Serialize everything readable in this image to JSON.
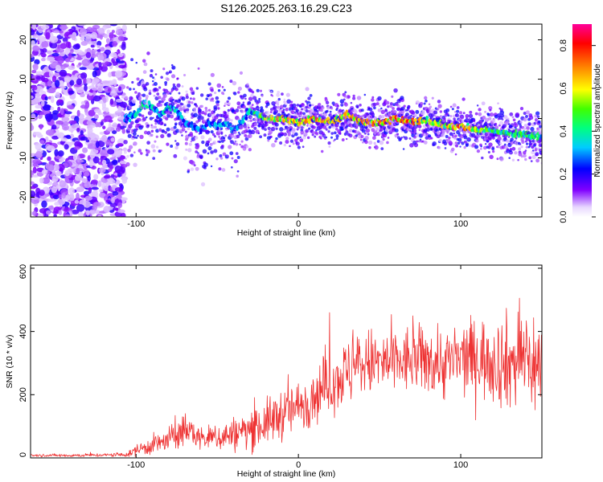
{
  "title": "S126.2025.263.16.29.C23",
  "chart_data": [
    {
      "type": "heatmap",
      "name": "spectrogram",
      "xlabel": "Height of straight line (km)",
      "ylabel": "Frequency (Hz)",
      "xlim": [
        -165,
        150
      ],
      "ylim": [
        -25,
        24
      ],
      "xticks": [
        -100,
        0,
        100
      ],
      "yticks": [
        -20,
        -10,
        0,
        10,
        20
      ],
      "colorbar": {
        "label": "Normalized spectral amplitude",
        "range": [
          0.0,
          0.9
        ],
        "ticks": [
          0.0,
          0.2,
          0.4,
          0.6,
          0.8
        ],
        "tick_labels": [
          "0.0",
          "0.2",
          "0.4",
          "0.6",
          "0.8"
        ]
      },
      "noise_region_x": [
        -165,
        -107
      ],
      "ridge": {
        "x": [
          -107,
          -100,
          -95,
          -90,
          -85,
          -80,
          -75,
          -70,
          -65,
          -60,
          -55,
          -50,
          -45,
          -40,
          -35,
          -30,
          -25,
          -20,
          -10,
          0,
          10,
          20,
          30,
          40,
          50,
          60,
          70,
          80,
          90,
          100,
          110,
          120,
          130,
          140,
          150
        ],
        "freq": [
          0,
          1,
          4,
          3,
          1,
          3,
          2,
          -1,
          -2,
          -3,
          -1,
          -2,
          -1,
          -3,
          -1,
          2,
          1,
          0,
          0,
          -1,
          0,
          -1,
          1,
          -1,
          -1,
          0,
          -1,
          -0.5,
          -2,
          -2,
          -3,
          -3,
          -4,
          -4,
          -5
        ],
        "amplitude": [
          0.3,
          0.4,
          0.45,
          0.4,
          0.35,
          0.45,
          0.4,
          0.35,
          0.3,
          0.35,
          0.3,
          0.35,
          0.35,
          0.35,
          0.35,
          0.4,
          0.5,
          0.6,
          0.7,
          0.7,
          0.75,
          0.7,
          0.7,
          0.75,
          0.75,
          0.8,
          0.8,
          0.6,
          0.65,
          0.8,
          0.6,
          0.5,
          0.5,
          0.5,
          0.45
        ]
      }
    },
    {
      "type": "line",
      "name": "snr",
      "color": "#ee3333",
      "xlabel": "Height of straight line (km)",
      "ylabel": "SNR (10 * v/v)",
      "xlim": [
        -165,
        150
      ],
      "ylim": [
        0,
        610
      ],
      "xticks": [
        -100,
        0,
        100
      ],
      "yticks": [
        0,
        200,
        400,
        600
      ],
      "envelope": {
        "x": [
          -165,
          -140,
          -120,
          -105,
          -100,
          -90,
          -80,
          -70,
          -65,
          -60,
          -50,
          -40,
          -30,
          -20,
          -10,
          0,
          10,
          20,
          30,
          40,
          50,
          60,
          70,
          80,
          90,
          100,
          110,
          120,
          130,
          140,
          150
        ],
        "mean": [
          8,
          8,
          9,
          10,
          25,
          40,
          55,
          90,
          80,
          60,
          65,
          75,
          90,
          110,
          140,
          160,
          200,
          240,
          270,
          300,
          300,
          300,
          310,
          310,
          300,
          310,
          320,
          310,
          300,
          320,
          280
        ],
        "spread": [
          5,
          6,
          6,
          8,
          20,
          35,
          45,
          60,
          50,
          40,
          50,
          60,
          70,
          80,
          90,
          90,
          100,
          110,
          120,
          120,
          120,
          120,
          120,
          120,
          130,
          130,
          140,
          150,
          170,
          180,
          200
        ]
      }
    }
  ]
}
